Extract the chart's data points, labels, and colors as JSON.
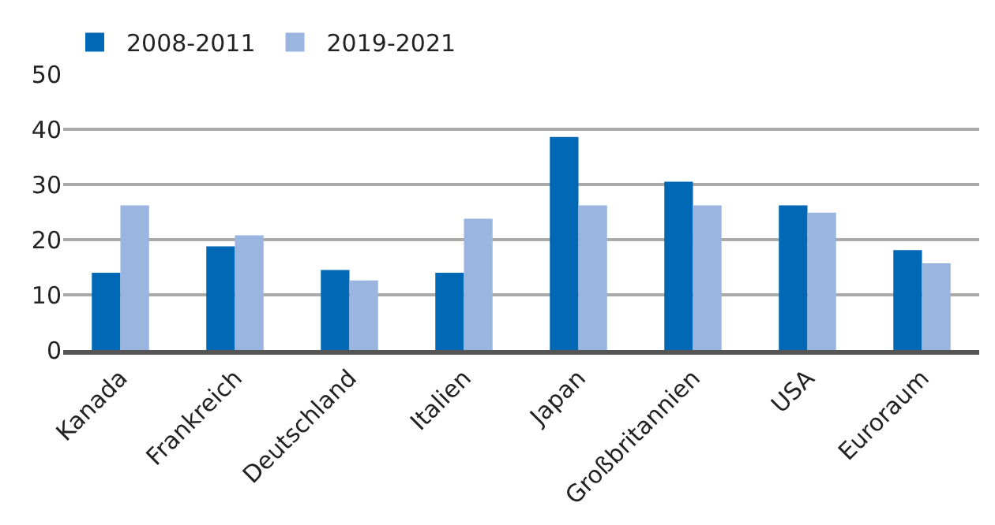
{
  "chart_data": {
    "type": "bar",
    "categories": [
      "Kanada",
      "Frankreich",
      "Deutschland",
      "Italien",
      "Japan",
      "Großbritannien",
      "USA",
      "Euroraum"
    ],
    "series": [
      {
        "name": "2008-2011",
        "color": "#0068b4",
        "values": [
          14,
          18.8,
          14.5,
          14,
          38.6,
          30.5,
          26.2,
          18.1
        ]
      },
      {
        "name": "2019-2021",
        "color": "#99b5e0",
        "values": [
          26.2,
          20.8,
          12.6,
          23.8,
          26.2,
          26.2,
          24.9,
          15.7
        ]
      }
    ],
    "ylim": [
      0,
      50
    ],
    "yticks": [
      0,
      10,
      20,
      30,
      40,
      50
    ],
    "grid": "y",
    "legend": "top left"
  }
}
